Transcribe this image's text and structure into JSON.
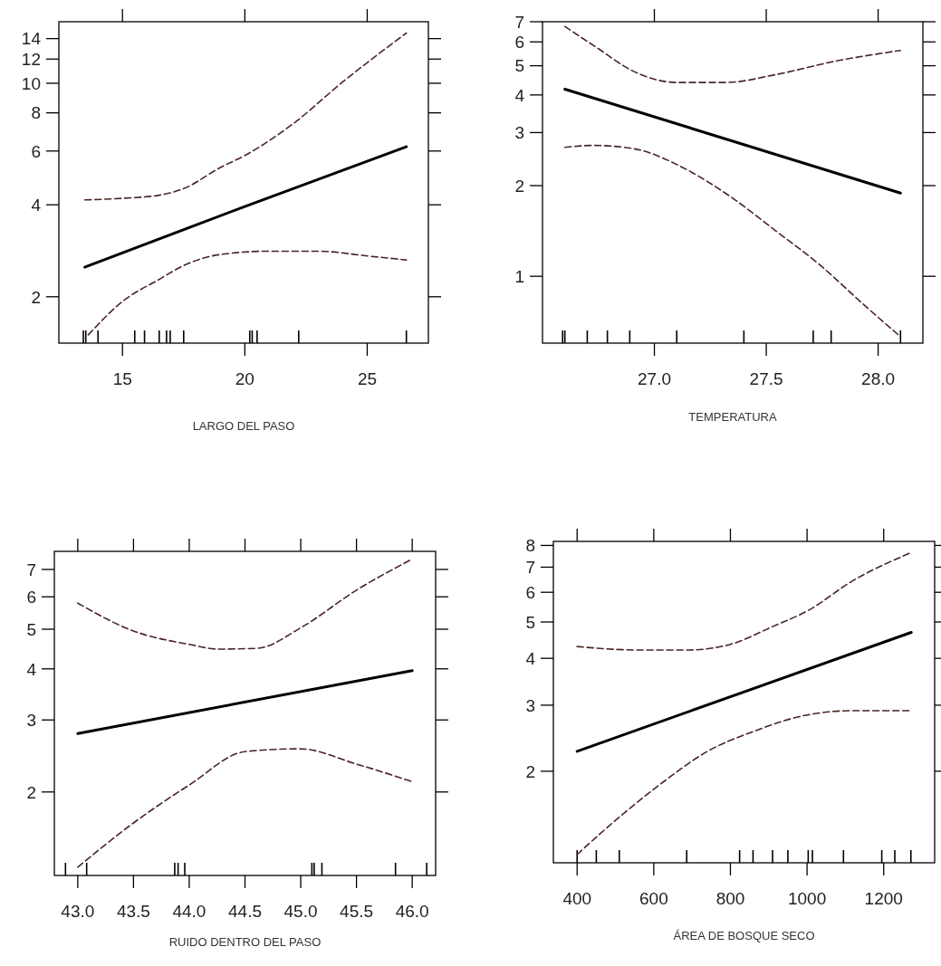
{
  "chart_data": [
    {
      "type": "line",
      "xlabel": "LARGO DEL PASO",
      "log": true,
      "xlim": [
        12.4,
        27.5
      ],
      "ylim": [
        1.41,
        15.9
      ],
      "xticks": [
        15,
        20,
        25,
        {
          "value": 13.4,
          "label": null
        },
        {
          "value": 13.5,
          "label": null
        },
        {
          "value": 14.0,
          "label": null
        },
        {
          "value": 15.5,
          "label": null
        },
        {
          "value": 15.9,
          "label": null
        },
        {
          "value": 16.5,
          "label": null
        },
        {
          "value": 16.8,
          "label": null
        },
        {
          "value": 16.95,
          "label": null
        },
        {
          "value": 17.5,
          "label": null
        },
        {
          "value": 20.2,
          "label": null
        },
        {
          "value": 20.3,
          "label": null
        },
        {
          "value": 20.5,
          "label": null
        },
        {
          "value": 22.2,
          "label": null
        },
        {
          "value": 26.6,
          "label": null
        }
      ],
      "yticks": [
        2,
        4,
        6,
        8,
        10,
        12,
        14
      ],
      "series": [
        {
          "color": "#000000",
          "line_style": "solid",
          "x": [
            13.46,
            20,
            26.6
          ],
          "values": [
            2.5,
            3.95,
            6.2
          ]
        },
        {
          "color": "#4a2424",
          "line_style": "dashed",
          "x": [
            13.46,
            15,
            16.5,
            17.5,
            19,
            20,
            22,
            24,
            26.6
          ],
          "values": [
            4.15,
            4.2,
            4.3,
            4.52,
            5.3,
            5.8,
            7.4,
            10.1,
            14.6
          ]
        },
        {
          "color": "#4a2424",
          "line_style": "dashed",
          "x": [
            13.6,
            15,
            16.5,
            17.5,
            19,
            21,
            23,
            25,
            26.6
          ],
          "values": [
            1.5,
            1.93,
            2.28,
            2.53,
            2.75,
            2.82,
            2.82,
            2.72,
            2.64
          ]
        }
      ]
    },
    {
      "type": "line",
      "xlabel": "TEMPERATURA",
      "log": true,
      "xlim": [
        26.5,
        28.2
      ],
      "ylim": [
        0.6,
        7
      ],
      "xticks": [
        {
          "value": 27,
          "label": "27.0"
        },
        {
          "value": 27.5,
          "label": "27.5"
        },
        {
          "value": 28,
          "label": "28.0"
        },
        {
          "value": 26.59,
          "label": null
        },
        {
          "value": 26.6,
          "label": null
        },
        {
          "value": 26.7,
          "label": null
        },
        {
          "value": 26.79,
          "label": null
        },
        {
          "value": 26.89,
          "label": null
        },
        {
          "value": 27.1,
          "label": null
        },
        {
          "value": 27.4,
          "label": null
        },
        {
          "value": 27.71,
          "label": null
        },
        {
          "value": 27.79,
          "label": null
        },
        {
          "value": 28.1,
          "label": null
        }
      ],
      "yticks": [
        1,
        2,
        3,
        4,
        5,
        6,
        7
      ],
      "series": [
        {
          "color": "#000000",
          "line_style": "solid",
          "x": [
            26.6,
            28.1
          ],
          "values": [
            4.18,
            1.89
          ]
        },
        {
          "color": "#4a2424",
          "line_style": "dashed",
          "x": [
            26.6,
            26.74,
            26.91,
            27.1,
            27.32,
            27.54,
            27.81,
            28.1
          ],
          "values": [
            6.75,
            5.76,
            4.78,
            4.4,
            4.4,
            4.67,
            5.18,
            5.62
          ]
        },
        {
          "color": "#4a2424",
          "line_style": "dashed",
          "x": [
            26.6,
            26.73,
            26.91,
            27.13,
            27.33,
            27.54,
            27.74,
            27.94,
            28.1
          ],
          "values": [
            2.68,
            2.72,
            2.65,
            2.29,
            1.86,
            1.42,
            1.09,
            0.8,
            0.63
          ]
        }
      ]
    },
    {
      "type": "line",
      "xlabel": "RUIDO DENTRO DEL PASO",
      "log": true,
      "xlim": [
        42.79,
        46.21
      ],
      "ylim": [
        1.25,
        7.75
      ],
      "xticks": [
        {
          "value": 43,
          "label": "43.0"
        },
        {
          "value": 43.5,
          "label": "43.5"
        },
        {
          "value": 44,
          "label": "44.0"
        },
        {
          "value": 44.5,
          "label": "44.5"
        },
        {
          "value": 45,
          "label": "45.0"
        },
        {
          "value": 45.5,
          "label": "45.5"
        },
        {
          "value": 46,
          "label": "46.0"
        },
        {
          "value": 42.89,
          "label": null
        },
        {
          "value": 43.08,
          "label": null
        },
        {
          "value": 43.87,
          "label": null
        },
        {
          "value": 43.9,
          "label": null
        },
        {
          "value": 43.96,
          "label": null
        },
        {
          "value": 45.1,
          "label": null
        },
        {
          "value": 45.12,
          "label": null
        },
        {
          "value": 45.19,
          "label": null
        },
        {
          "value": 45.85,
          "label": null
        },
        {
          "value": 46.13,
          "label": null
        }
      ],
      "yticks": [
        2,
        3,
        4,
        5,
        6,
        7
      ],
      "series": [
        {
          "color": "#000000",
          "line_style": "solid",
          "x": [
            43,
            46
          ],
          "values": [
            2.78,
            3.96
          ]
        },
        {
          "color": "#4a2424",
          "line_style": "dashed",
          "x": [
            43,
            43.5,
            44,
            44.26,
            44.61,
            45,
            45.5,
            46
          ],
          "values": [
            5.79,
            4.95,
            4.59,
            4.47,
            4.49,
            5.04,
            6.23,
            7.42
          ]
        },
        {
          "color": "#4a2424",
          "line_style": "dashed",
          "x": [
            43,
            43.5,
            44,
            44.5,
            44.99,
            45.5,
            46
          ],
          "values": [
            1.31,
            1.68,
            2.08,
            2.51,
            2.55,
            2.34,
            2.12
          ]
        }
      ]
    },
    {
      "type": "line",
      "xlabel": "ÁREA DE BOSQUE SECO",
      "log": true,
      "xlim": [
        338,
        1333
      ],
      "ylim": [
        1.14,
        8.2
      ],
      "xticks": [
        400,
        600,
        800,
        1000,
        1200,
        {
          "value": 400,
          "label": null
        },
        {
          "value": 450,
          "label": null
        },
        {
          "value": 510,
          "label": null
        },
        {
          "value": 686,
          "label": null
        },
        {
          "value": 824,
          "label": null
        },
        {
          "value": 859,
          "label": null
        },
        {
          "value": 910,
          "label": null
        },
        {
          "value": 950,
          "label": null
        },
        {
          "value": 1003,
          "label": null
        },
        {
          "value": 1014,
          "label": null
        },
        {
          "value": 1095,
          "label": null
        },
        {
          "value": 1195,
          "label": null
        },
        {
          "value": 1229,
          "label": null
        },
        {
          "value": 1271,
          "label": null
        }
      ],
      "yticks": [
        2,
        3,
        4,
        5,
        6,
        7,
        8
      ],
      "series": [
        {
          "color": "#000000",
          "line_style": "solid",
          "x": [
            400,
            1272
          ],
          "values": [
            2.26,
            4.69
          ]
        },
        {
          "color": "#4a2424",
          "line_style": "dashed",
          "x": [
            400,
            556,
            690,
            800,
            910,
            1005,
            1115,
            1272
          ],
          "values": [
            4.3,
            4.21,
            4.21,
            4.36,
            4.86,
            5.38,
            6.4,
            7.66
          ]
        },
        {
          "color": "#4a2424",
          "line_style": "dashed",
          "x": [
            400,
            517,
            627,
            737,
            863,
            989,
            1115,
            1272
          ],
          "values": [
            1.2,
            1.53,
            1.88,
            2.25,
            2.56,
            2.81,
            2.9,
            2.9
          ]
        }
      ]
    }
  ]
}
